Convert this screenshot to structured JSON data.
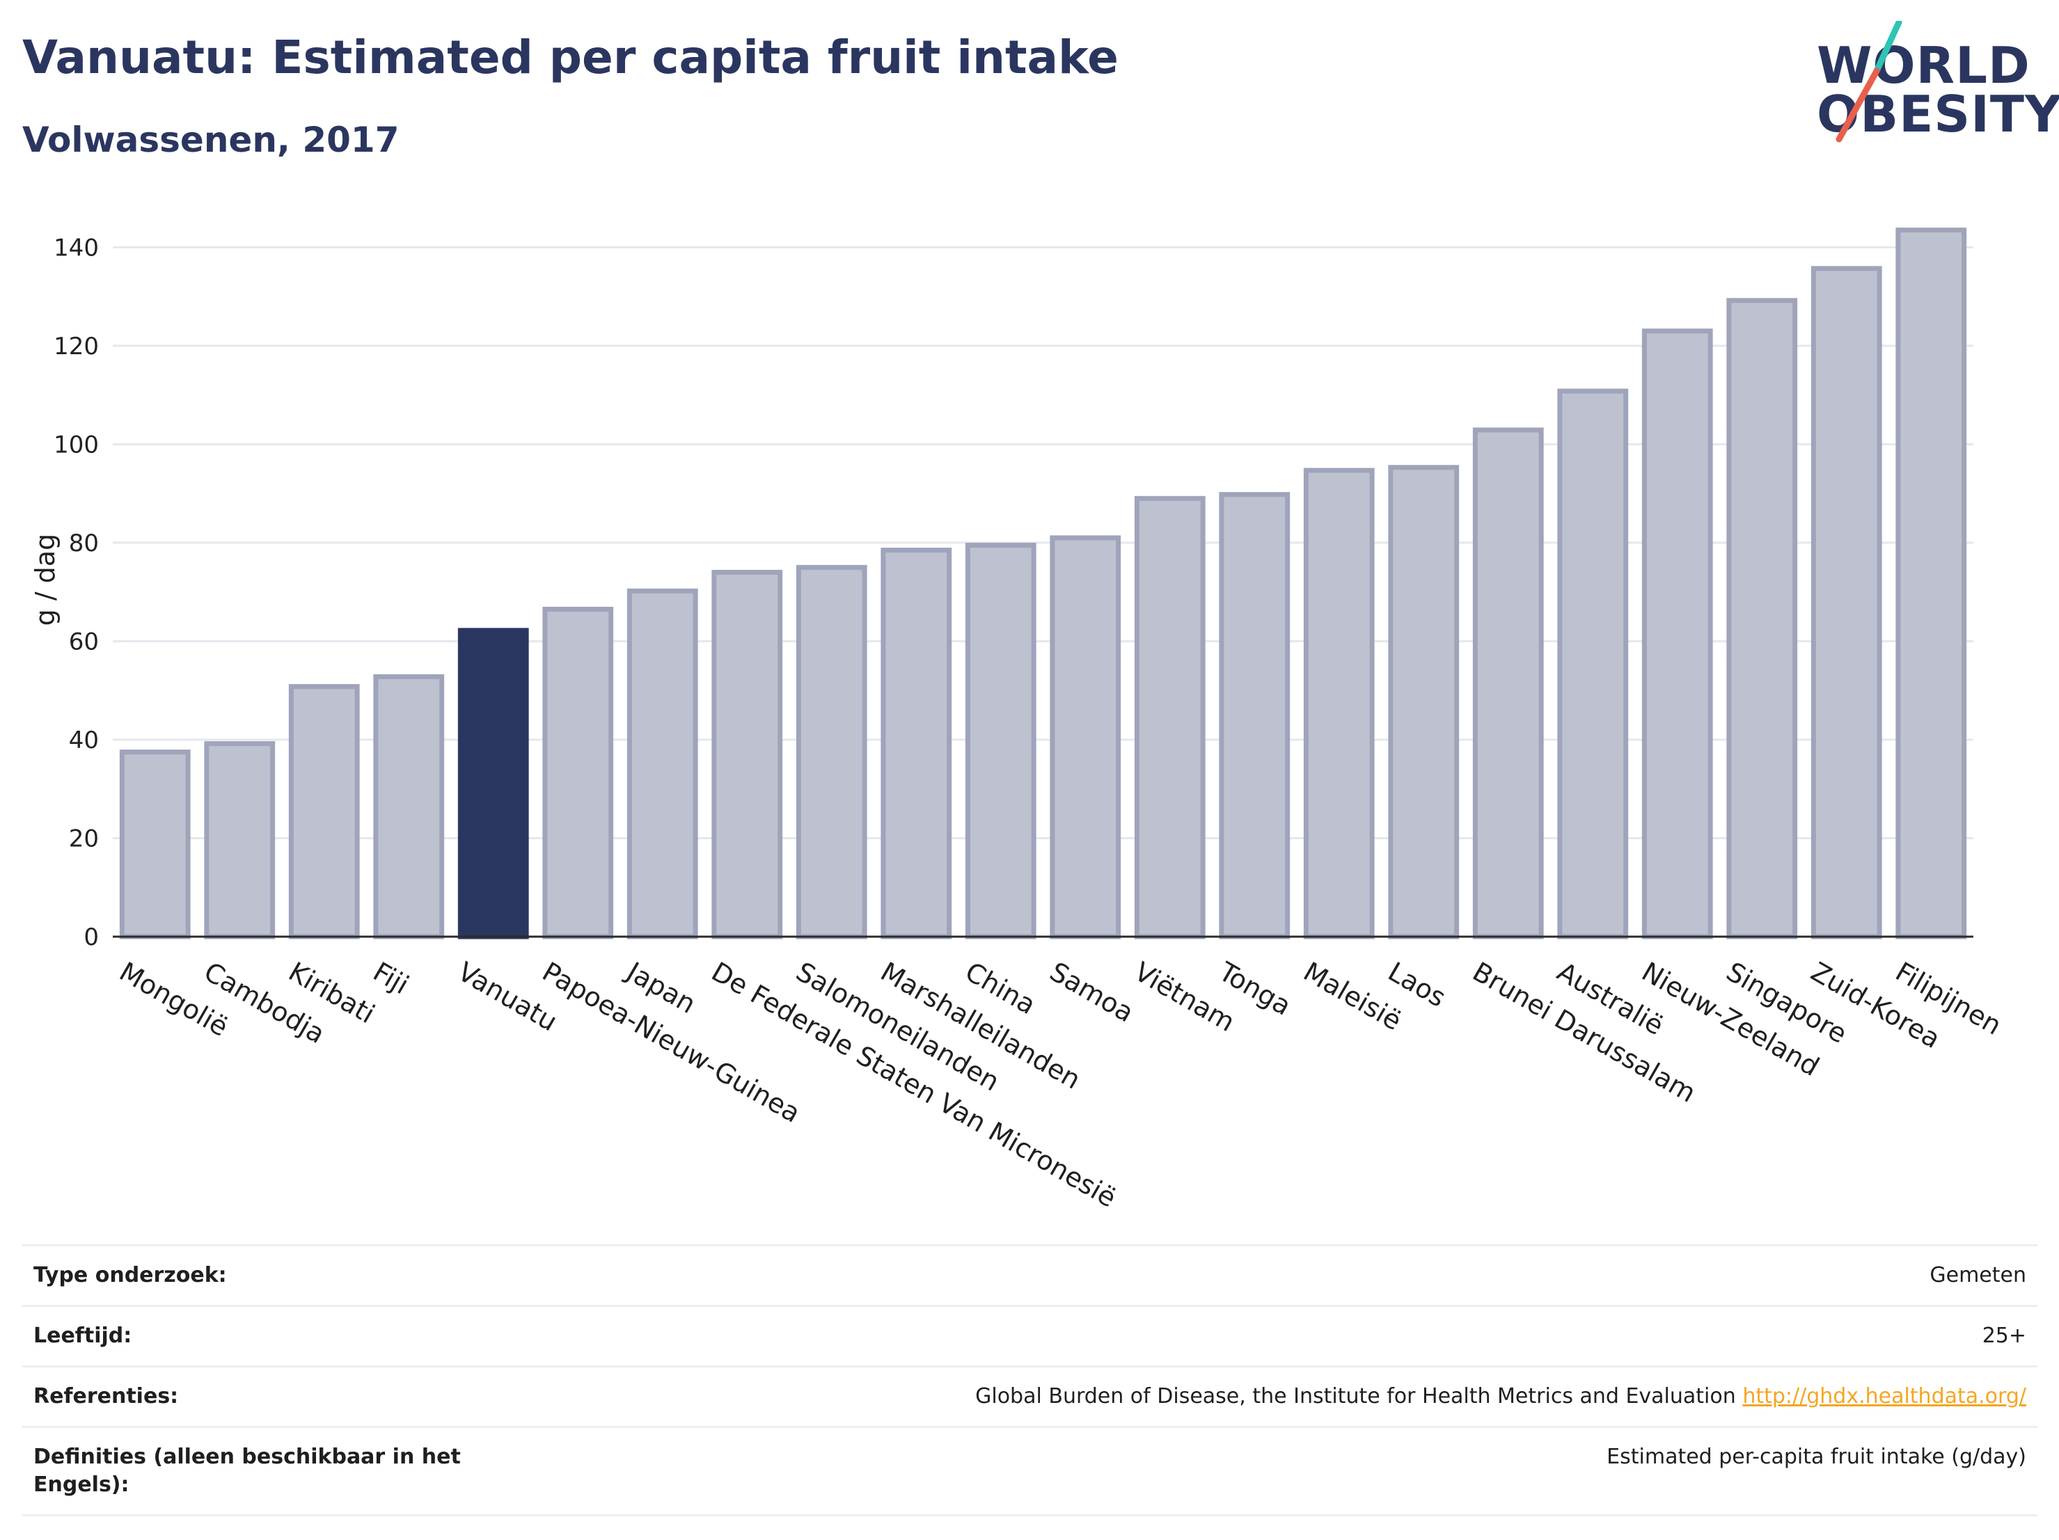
{
  "header": {
    "title": "Vanuatu: Estimated per capita fruit intake",
    "subtitle": "Volwassenen, 2017"
  },
  "logo": {
    "line1": "WORLD",
    "line2": "OBESITY",
    "accent_colors": [
      "#2ec4b6",
      "#e8604c"
    ]
  },
  "colors": {
    "highlight_bar": "#2b3660",
    "other_bar_fill": "#bec1cf",
    "other_bar_stroke": "#9fa4bb",
    "text_dark": "#2b3660"
  },
  "chart_data": {
    "type": "bar",
    "ylabel": "g / dag",
    "xlabel": "",
    "ylim": [
      0,
      145
    ],
    "yticks": [
      0,
      20,
      40,
      60,
      80,
      100,
      120,
      140
    ],
    "grid": true,
    "highlight": "Vanuatu",
    "categories": [
      "Mongolië",
      "Cambodja",
      "Kiribati",
      "Fiji",
      "Vanuatu",
      "Papoea-Nieuw-Guinea",
      "Japan",
      "De Federale Staten Van Micronesië",
      "Salomoneilanden",
      "Marshalleilanden",
      "China",
      "Samoa",
      "Viëtnam",
      "Tonga",
      "Maleisië",
      "Laos",
      "Brunei Darussalam",
      "Australië",
      "Nieuw-Zeeland",
      "Singapore",
      "Zuid-Korea",
      "Filipijnen"
    ],
    "values": [
      37.5,
      39.2,
      50.8,
      52.8,
      62.2,
      66.5,
      70.2,
      74.0,
      75.0,
      78.5,
      79.5,
      81.0,
      89.0,
      89.8,
      94.7,
      95.3,
      102.9,
      110.8,
      123.0,
      129.2,
      135.7,
      143.5
    ]
  },
  "info": {
    "rows": [
      {
        "label": "Type onderzoek:",
        "value": "Gemeten"
      },
      {
        "label": "Leeftijd:",
        "value": "25+"
      },
      {
        "label": "Referenties:",
        "value": "Global Burden of Disease, the Institute for Health Metrics and Evaluation",
        "link": "http://ghdx.healthdata.org/"
      },
      {
        "label": "Definities (alleen beschikbaar in het Engels):",
        "value": "Estimated per-capita fruit intake (g/day)"
      }
    ]
  }
}
